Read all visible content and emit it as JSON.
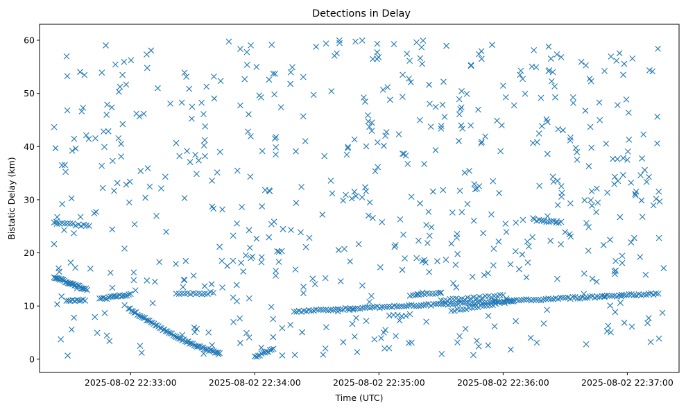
{
  "chart_data": {
    "type": "scatter",
    "title": "Detections in Delay",
    "xlabel": "Time (UTC)",
    "ylabel": "Bistatic Delay (km)",
    "x_ticks": [
      "2025-08-02 22:33:00",
      "2025-08-02 22:34:00",
      "2025-08-02 22:35:00",
      "2025-08-02 22:36:00",
      "2025-08-02 22:37:00"
    ],
    "y_ticks": [
      "0",
      "10",
      "20",
      "30",
      "40",
      "50",
      "60"
    ],
    "xlim": [
      "2025-08-02 22:32:16",
      "2025-08-02 22:37:25"
    ],
    "ylim": [
      -2.5,
      63
    ],
    "grid": false,
    "marker": "x",
    "marker_color": "#1f77b4",
    "series": [
      {
        "kind": "track",
        "x_start": "2025-08-02 22:32:23",
        "x_end": "2025-08-02 22:32:39",
        "y": [
          15.4,
          13.1
        ],
        "count": 30
      },
      {
        "kind": "track",
        "x_start": "2025-08-02 22:32:23",
        "x_end": "2025-08-02 22:32:40",
        "y": [
          25.6,
          25.1
        ],
        "count": 14
      },
      {
        "kind": "track",
        "x_start": "2025-08-02 22:32:29",
        "x_end": "2025-08-02 22:32:38",
        "y": [
          11.0,
          11.1
        ],
        "count": 10
      },
      {
        "kind": "track",
        "x_start": "2025-08-02 22:32:45",
        "x_end": "2025-08-02 22:33:00",
        "y": [
          11.3,
          12.2
        ],
        "count": 18
      },
      {
        "kind": "track",
        "x_start": "2025-08-02 22:32:59",
        "x_end": "2025-08-02 22:33:43",
        "y": [
          9.6,
          1.2
        ],
        "count": 62
      },
      {
        "kind": "track",
        "x_start": "2025-08-02 22:33:22",
        "x_end": "2025-08-02 22:33:40",
        "y": [
          12.2,
          12.5
        ],
        "count": 14
      },
      {
        "kind": "track",
        "x_start": "2025-08-02 22:34:00",
        "x_end": "2025-08-02 22:34:09",
        "y": [
          0.5,
          1.8
        ],
        "count": 12
      },
      {
        "kind": "track",
        "x_start": "2025-08-02 22:34:19",
        "x_end": "2025-08-02 22:37:15",
        "y": [
          9.0,
          12.3
        ],
        "count": 150
      },
      {
        "kind": "track",
        "x_start": "2025-08-02 22:35:15",
        "x_end": "2025-08-02 22:35:30",
        "y": [
          12.1,
          12.4
        ],
        "count": 12
      },
      {
        "kind": "track",
        "x_start": "2025-08-02 22:35:30",
        "x_end": "2025-08-02 22:36:00",
        "y": [
          11.0,
          12.0
        ],
        "count": 22
      },
      {
        "kind": "track",
        "x_start": "2025-08-02 22:35:35",
        "x_end": "2025-08-02 22:36:05",
        "y": [
          9.0,
          11.0
        ],
        "count": 22
      },
      {
        "kind": "track",
        "x_start": "2025-08-02 22:36:15",
        "x_end": "2025-08-02 22:36:28",
        "y": [
          26.2,
          25.7
        ],
        "count": 12
      },
      {
        "kind": "track",
        "x_start": "2025-08-02 22:35:05",
        "x_end": "2025-08-02 22:35:15",
        "y": [
          8.2,
          8.3
        ],
        "count": 6
      },
      {
        "kind": "clutter",
        "x_start": "2025-08-02 22:32:23",
        "x_end": "2025-08-02 22:37:18",
        "y": [
          0.5,
          60.0
        ],
        "count": 620
      }
    ]
  }
}
